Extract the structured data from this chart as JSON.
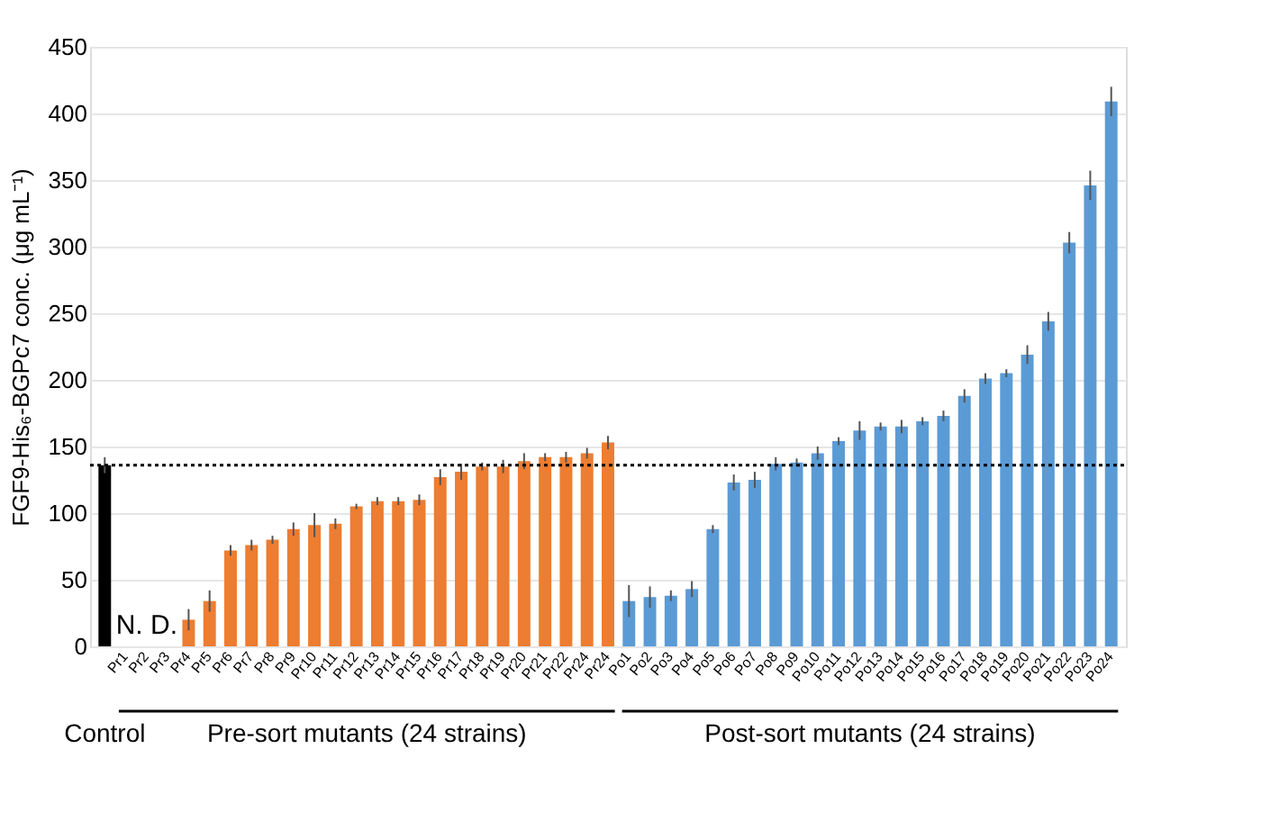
{
  "chart_data": {
    "type": "bar",
    "ylabel": "FGF9-His₆-BGPc7 conc. (μg mL⁻¹)",
    "categories": [
      null,
      "Pr1",
      "Pr2",
      "Pr3",
      "Pr4",
      "Pr5",
      "Pr6",
      "Pr7",
      "Pr8",
      "Pr9",
      "Pr10",
      "Pr11",
      "Pr12",
      "Pr13",
      "Pr14",
      "Pr15",
      "Pr16",
      "Pr17",
      "Pr18",
      "Pr19",
      "Pr20",
      "Pr21",
      "Pr22",
      "Pr24",
      "Pr24",
      "Po1",
      "Po2",
      "Po3",
      "Po4",
      "Po5",
      "Po6",
      "Po7",
      "Po8",
      "Po9",
      "Po10",
      "Po11",
      "Po12",
      "Po13",
      "Po14",
      "Po15",
      "Po16",
      "Po17",
      "Po18",
      "Po19",
      "Po20",
      "Po21",
      "Po22",
      "Po23",
      "Po24"
    ],
    "values": [
      136,
      null,
      null,
      null,
      20,
      34,
      72,
      76,
      80,
      88,
      91,
      92,
      105,
      109,
      109,
      110,
      127,
      131,
      135,
      135,
      139,
      142,
      142,
      145,
      153,
      34,
      37,
      38,
      43,
      88,
      123,
      125,
      137,
      138,
      145,
      154,
      162,
      165,
      165,
      169,
      173,
      188,
      201,
      205,
      219,
      244,
      303,
      346,
      409
    ],
    "errors": [
      6,
      null,
      null,
      null,
      8,
      8,
      4,
      4,
      3,
      5,
      9,
      4,
      2,
      3,
      3,
      4,
      6,
      6,
      3,
      5,
      6,
      3,
      4,
      4,
      5,
      12,
      8,
      4,
      6,
      3,
      6,
      6,
      5,
      3,
      5,
      3,
      7,
      3,
      5,
      3,
      4,
      5,
      4,
      3,
      7,
      7,
      8,
      11,
      11
    ],
    "colors": [
      "#000000",
      "#ed7d31",
      "#ed7d31",
      "#ed7d31",
      "#ed7d31",
      "#ed7d31",
      "#ed7d31",
      "#ed7d31",
      "#ed7d31",
      "#ed7d31",
      "#ed7d31",
      "#ed7d31",
      "#ed7d31",
      "#ed7d31",
      "#ed7d31",
      "#ed7d31",
      "#ed7d31",
      "#ed7d31",
      "#ed7d31",
      "#ed7d31",
      "#ed7d31",
      "#ed7d31",
      "#ed7d31",
      "#ed7d31",
      "#ed7d31",
      "#5b9bd5",
      "#5b9bd5",
      "#5b9bd5",
      "#5b9bd5",
      "#5b9bd5",
      "#5b9bd5",
      "#5b9bd5",
      "#5b9bd5",
      "#5b9bd5",
      "#5b9bd5",
      "#5b9bd5",
      "#5b9bd5",
      "#5b9bd5",
      "#5b9bd5",
      "#5b9bd5",
      "#5b9bd5",
      "#5b9bd5",
      "#5b9bd5",
      "#5b9bd5",
      "#5b9bd5",
      "#5b9bd5",
      "#5b9bd5",
      "#5b9bd5",
      "#5b9bd5"
    ],
    "ylim": [
      0,
      450
    ],
    "yticks": [
      0,
      50,
      100,
      150,
      200,
      250,
      300,
      350,
      400,
      450
    ],
    "grid": "y",
    "ref_lines": [
      {
        "axis": "y",
        "value": 136,
        "color": "#000000",
        "line_style": "dotted"
      }
    ],
    "annotations": [
      "Control",
      "Pre-sort mutants (24 strains)",
      "Post-sort mutants (24 strains)",
      "N. D."
    ]
  }
}
